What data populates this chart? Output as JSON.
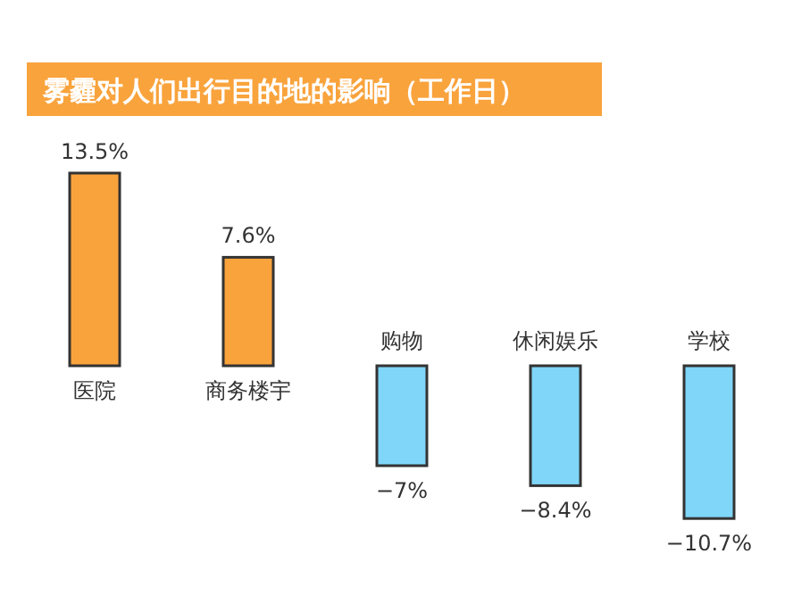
{
  "chart_data": {
    "type": "bar",
    "title": "雾霾对人们出行目的地的影响（工作日）",
    "categories": [
      "医院",
      "商务楼宇",
      "购物",
      "休闲娱乐",
      "学校"
    ],
    "values": [
      13.5,
      7.6,
      -7,
      -8.4,
      -10.7
    ],
    "colors": [
      "#f9a33c",
      "#f9a33c",
      "#7fd6f9",
      "#7fd6f9",
      "#7fd6f9"
    ],
    "value_labels": [
      "13.5%",
      "7.6%",
      "−7%",
      "−8.4%",
      "−10.7%"
    ]
  }
}
